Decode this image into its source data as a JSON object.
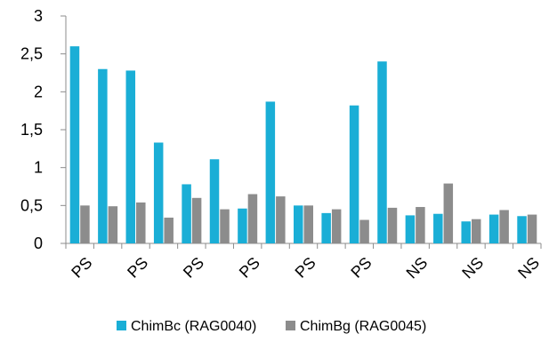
{
  "chart_data": {
    "type": "bar",
    "categories": [
      "PS",
      "",
      "PS",
      "",
      "PS",
      "",
      "PS",
      "",
      "PS",
      "",
      "PS",
      "",
      "NS",
      "",
      "NS",
      "",
      "NS"
    ],
    "tick_labels": [
      "PS",
      "PS",
      "PS",
      "PS",
      "PS",
      "PS",
      "NS",
      "NS",
      "NS"
    ],
    "series": [
      {
        "name": "ChimBc (RAG0040)",
        "color": "#1aaed6",
        "values": [
          2.6,
          2.3,
          2.28,
          1.33,
          0.78,
          1.11,
          0.46,
          1.87,
          0.5,
          0.4,
          1.82,
          2.4,
          0.37,
          0.39,
          0.29,
          0.38,
          0.36
        ]
      },
      {
        "name": "ChimBg (RAG0045)",
        "color": "#8c8c8c",
        "values": [
          0.5,
          0.49,
          0.54,
          0.34,
          0.6,
          0.45,
          0.65,
          0.62,
          0.5,
          0.45,
          0.31,
          0.47,
          0.48,
          0.79,
          0.32,
          0.44,
          0.38
        ]
      }
    ],
    "yticks": [
      "0",
      "0,5",
      "1",
      "1,5",
      "2",
      "2,5",
      "3"
    ],
    "ylim": [
      0,
      3
    ],
    "grid": false,
    "legend": "bottom"
  }
}
